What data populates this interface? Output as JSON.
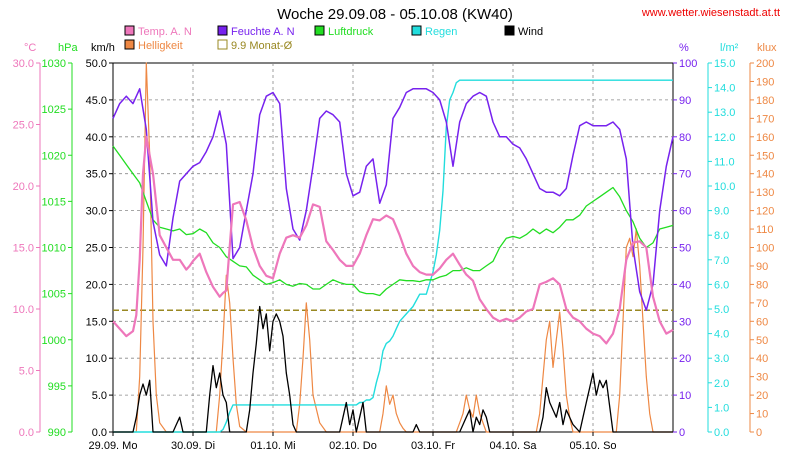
{
  "title": "Woche 29.09.08 - 05.10.08 (KW40)",
  "source": "www.wetter.wiesenstadt.at.tt",
  "units": {
    "temp": "°C",
    "pressure": "hPa",
    "wind": "km/h",
    "humidity": "%",
    "rain": "l/m²",
    "light": "klux"
  },
  "colors": {
    "temp": "#ee77bb",
    "humidity": "#7722ee",
    "pressure": "#22dd22",
    "rain": "#22dddd",
    "wind": "#000000",
    "light": "#ee8844",
    "avg": "#998822",
    "title": "#000000",
    "source": "#ee0000",
    "grid": "#888888"
  },
  "legend": [
    {
      "key": "temp",
      "label": "Temp. A. N"
    },
    {
      "key": "humidity",
      "label": "Feuchte A. N"
    },
    {
      "key": "pressure",
      "label": "Luftdruck"
    },
    {
      "key": "rain",
      "label": "Regen"
    },
    {
      "key": "wind",
      "label": "Wind"
    },
    {
      "key": "light",
      "label": "Helligkeit"
    },
    {
      "key": "avg",
      "label": "9.9 Monat-Ø"
    }
  ],
  "chart_data": {
    "type": "line",
    "x_unit": "hours since 29.09. 00:00",
    "xlim": [
      0,
      168
    ],
    "x_tick_labels": [
      "29.09.  Mo",
      "30.09.  Di",
      "01.10.  Mi",
      "02.10.  Do",
      "03.10.  Fr",
      "04.10.  Sa",
      "05.10.  So"
    ],
    "axes": {
      "temp": {
        "ticks": [
          "0.0",
          "5.0",
          "10.0",
          "15.0",
          "20.0",
          "25.0",
          "30.0"
        ],
        "lim": [
          0,
          30
        ]
      },
      "pressure": {
        "ticks": [
          "990",
          "995",
          "1000",
          "1005",
          "1010",
          "1015",
          "1020",
          "1025",
          "1030"
        ],
        "lim": [
          990,
          1030
        ]
      },
      "wind": {
        "ticks": [
          "0.0",
          "5.0",
          "10.0",
          "15.0",
          "20.0",
          "25.0",
          "30.0",
          "35.0",
          "40.0",
          "45.0",
          "50.0"
        ],
        "lim": [
          0,
          50
        ]
      },
      "humidity": {
        "ticks": [
          "0",
          "10",
          "20",
          "30",
          "40",
          "50",
          "60",
          "70",
          "80",
          "90",
          "100"
        ],
        "lim": [
          0,
          100
        ]
      },
      "rain": {
        "ticks": [
          "0.0",
          "1.0",
          "2.0",
          "3.0",
          "4.0",
          "5.0",
          "6.0",
          "7.0",
          "8.0",
          "9.0",
          "10.0",
          "11.0",
          "12.0",
          "13.0",
          "14.0",
          "15.0"
        ],
        "lim": [
          0,
          15
        ]
      },
      "light": {
        "ticks": [
          "0",
          "10",
          "20",
          "30",
          "40",
          "50",
          "60",
          "70",
          "80",
          "90",
          "100",
          "110",
          "120",
          "130",
          "140",
          "150",
          "160",
          "170",
          "180",
          "190",
          "200"
        ],
        "lim": [
          0,
          200
        ]
      }
    },
    "avg_line": {
      "axis": "temp",
      "value": 9.9
    },
    "series": [
      {
        "name": "Temp. A. N",
        "key": "temp",
        "axis": "temp",
        "x": [
          0,
          2,
          4,
          6,
          7,
          8,
          9,
          10,
          12,
          14,
          16,
          18,
          20,
          22,
          23,
          24,
          26,
          28,
          30,
          32,
          33,
          34,
          36,
          38,
          40,
          42,
          44,
          46,
          48,
          50,
          52,
          54,
          56,
          58,
          60,
          62,
          64,
          66,
          68,
          70,
          72,
          74,
          76,
          78,
          80,
          82,
          84,
          86,
          88,
          90,
          92,
          94,
          96,
          98,
          100,
          102,
          104,
          106,
          108,
          110,
          112,
          114,
          116,
          118,
          120,
          122,
          124,
          126,
          128,
          130,
          132,
          134,
          136,
          138,
          140,
          142,
          144,
          146,
          148,
          150,
          152,
          154,
          156,
          158,
          160,
          162,
          164,
          166,
          168
        ],
        "y": [
          9.0,
          8.4,
          7.8,
          8.2,
          9.5,
          14,
          21,
          24,
          21,
          16,
          15,
          14,
          14,
          13.2,
          13.5,
          13.9,
          14.5,
          13,
          11.8,
          11,
          11.3,
          11.5,
          18.5,
          18.7,
          17.2,
          15,
          13.5,
          12.7,
          12.5,
          14.5,
          15.8,
          16,
          15.8,
          16.8,
          18.5,
          18.3,
          15.5,
          14.8,
          14,
          13.5,
          13.5,
          14.5,
          16,
          17.3,
          17.2,
          17.6,
          17.3,
          16,
          14.5,
          13.5,
          13,
          12.8,
          12.8,
          13.3,
          14,
          14.5,
          13.6,
          12.8,
          12.3,
          10.8,
          10,
          9.3,
          9,
          9.2,
          9,
          9.3,
          9.8,
          10,
          12,
          12.2,
          12.5,
          12,
          10,
          9.3,
          9,
          8.4,
          8,
          7.8,
          7.2,
          8,
          10,
          14,
          15.4,
          15.5,
          15,
          11,
          9,
          8,
          8.3
        ]
      },
      {
        "name": "Feuchte A. N",
        "key": "humidity",
        "axis": "humidity",
        "x": [
          0,
          2,
          4,
          6,
          8,
          10,
          12,
          14,
          16,
          18,
          20,
          22,
          24,
          26,
          28,
          30,
          32,
          34,
          36,
          38,
          40,
          42,
          44,
          46,
          48,
          50,
          52,
          54,
          56,
          58,
          60,
          62,
          64,
          66,
          68,
          70,
          72,
          74,
          76,
          78,
          80,
          82,
          84,
          86,
          88,
          90,
          92,
          94,
          96,
          98,
          100,
          102,
          104,
          106,
          108,
          110,
          112,
          114,
          116,
          118,
          120,
          122,
          124,
          126,
          128,
          130,
          132,
          134,
          136,
          138,
          140,
          142,
          144,
          146,
          148,
          150,
          152,
          154,
          156,
          158,
          160,
          162,
          164,
          166,
          168
        ],
        "y": [
          85,
          89,
          91,
          89,
          93,
          82,
          57,
          48,
          45,
          58,
          68,
          70,
          72,
          73,
          76,
          80,
          87,
          78,
          47,
          50,
          60,
          70,
          86,
          91,
          92,
          89,
          66,
          55,
          52,
          60,
          72,
          85,
          87,
          86,
          84,
          70,
          64,
          65,
          72,
          74,
          62,
          67,
          85,
          88,
          92,
          93,
          93,
          93,
          92,
          90,
          84,
          72,
          84,
          89,
          91,
          92,
          91,
          84,
          80,
          80,
          78,
          77,
          74,
          70,
          66,
          65,
          65,
          64,
          66,
          75,
          83,
          84,
          83,
          83,
          83,
          84,
          82,
          74,
          50,
          38,
          33,
          40,
          60,
          72,
          80
        ]
      },
      {
        "name": "Luftdruck",
        "key": "pressure",
        "axis": "pressure",
        "x": [
          0,
          2,
          4,
          6,
          8,
          10,
          12,
          14,
          16,
          18,
          20,
          22,
          24,
          26,
          28,
          30,
          32,
          34,
          36,
          38,
          40,
          42,
          44,
          46,
          48,
          50,
          52,
          54,
          56,
          58,
          60,
          62,
          64,
          66,
          68,
          70,
          72,
          74,
          76,
          78,
          80,
          82,
          84,
          86,
          88,
          90,
          92,
          94,
          96,
          98,
          100,
          102,
          104,
          106,
          108,
          110,
          112,
          114,
          116,
          118,
          120,
          122,
          124,
          126,
          128,
          130,
          132,
          134,
          136,
          138,
          140,
          142,
          144,
          146,
          148,
          150,
          152,
          154,
          156,
          158,
          160,
          162,
          164,
          166,
          168
        ],
        "y": [
          1021,
          1020,
          1019,
          1018,
          1017,
          1015,
          1013,
          1012.2,
          1012,
          1011.8,
          1012,
          1011.4,
          1011.5,
          1012,
          1011.6,
          1010.5,
          1010,
          1009,
          1008.5,
          1008,
          1007.9,
          1007,
          1006.5,
          1006,
          1006.2,
          1006.5,
          1006,
          1005.8,
          1006.1,
          1006,
          1005.5,
          1005.5,
          1006,
          1006.5,
          1006.2,
          1006,
          1006,
          1005.2,
          1005,
          1005,
          1004.8,
          1005.5,
          1006,
          1006.5,
          1006.4,
          1006.4,
          1006.3,
          1006.5,
          1006.5,
          1006.8,
          1007,
          1007.5,
          1007.5,
          1007.8,
          1007.5,
          1007.5,
          1008,
          1008.5,
          1010,
          1011,
          1011.2,
          1011,
          1011.4,
          1012,
          1011.5,
          1012,
          1011.6,
          1012.2,
          1013,
          1013,
          1013.5,
          1014.5,
          1015,
          1015.5,
          1016,
          1016.5,
          1015.5,
          1014,
          1012.8,
          1011,
          1010,
          1010.5,
          1012,
          1012.2,
          1012.4
        ]
      },
      {
        "name": "Regen",
        "key": "rain",
        "axis": "rain",
        "x": [
          0,
          32,
          33,
          34,
          35,
          36,
          70,
          71,
          72,
          73,
          74,
          75,
          76,
          77,
          78,
          79,
          80,
          81,
          82,
          83,
          84,
          85,
          86,
          88,
          90,
          92,
          94,
          96,
          97,
          98,
          99,
          100,
          101,
          102,
          103,
          104,
          105,
          106,
          108,
          168
        ],
        "y": [
          0,
          0,
          0.1,
          0.4,
          0.8,
          1.1,
          1.1,
          1.1,
          1.1,
          1.1,
          1.2,
          1.2,
          1.3,
          1.3,
          1.4,
          2,
          2.5,
          3.3,
          3.6,
          3.7,
          3.9,
          4.2,
          4.5,
          4.8,
          5.1,
          5.6,
          5.6,
          6.5,
          7.2,
          8.2,
          9.8,
          12.4,
          13.5,
          13.8,
          14.2,
          14.3,
          14.3,
          14.3,
          14.3,
          14.3
        ]
      },
      {
        "name": "Wind",
        "key": "wind",
        "axis": "wind",
        "x": [
          0,
          6,
          7,
          8,
          9,
          10,
          11,
          12,
          18,
          19,
          20,
          21,
          22,
          24,
          28,
          29,
          30,
          31,
          32,
          33,
          34,
          35,
          36,
          40,
          41,
          42,
          43,
          44,
          45,
          46,
          47,
          48,
          49,
          50,
          51,
          52,
          53,
          54,
          55,
          56,
          60,
          62,
          64,
          66,
          68,
          69,
          70,
          71,
          72,
          73,
          74,
          75,
          76,
          88,
          90,
          91,
          92,
          93,
          94,
          95,
          96,
          98,
          100,
          102,
          104,
          105,
          106,
          107,
          108,
          109,
          110,
          111,
          112,
          113,
          114,
          115,
          116,
          117,
          118,
          124,
          126,
          128,
          129,
          130,
          131,
          132,
          133,
          134,
          135,
          136,
          138,
          140,
          141,
          142,
          143,
          144,
          145,
          146,
          147,
          148,
          150,
          152,
          168
        ],
        "y": [
          0,
          0,
          2,
          5,
          6.5,
          5,
          7,
          0,
          0,
          1,
          2,
          0,
          0,
          0,
          0,
          5,
          9,
          6,
          8,
          5,
          4,
          0,
          0,
          0,
          3,
          8,
          12,
          17,
          14,
          16,
          11,
          15,
          16,
          15,
          13,
          8,
          5,
          1,
          0,
          0,
          0,
          0,
          0,
          0,
          0,
          2,
          4,
          1,
          3,
          0,
          2,
          4,
          0,
          0,
          0,
          1,
          0,
          0,
          0,
          0,
          0,
          0,
          0,
          0,
          0,
          1,
          2,
          3,
          0,
          2,
          1,
          3,
          2,
          0,
          0,
          0,
          0,
          0,
          0,
          0,
          0,
          0,
          2,
          6,
          4,
          3,
          2,
          4,
          1,
          3,
          1,
          0,
          2,
          4,
          6,
          8,
          5,
          7,
          6,
          7,
          0,
          0,
          0
        ]
      },
      {
        "name": "Helligkeit",
        "key": "light",
        "axis": "light",
        "x": [
          0,
          7,
          8,
          9,
          10,
          11,
          12,
          13,
          14,
          16,
          17,
          18,
          19,
          31,
          32,
          33,
          34,
          35,
          36,
          37,
          38,
          40,
          55,
          56,
          57,
          58,
          59,
          60,
          62,
          64,
          80,
          81,
          82,
          83,
          84,
          85,
          86,
          87,
          88,
          103,
          104,
          105,
          106,
          107,
          108,
          109,
          110,
          111,
          112,
          127,
          128,
          129,
          130,
          131,
          132,
          133,
          134,
          135,
          136,
          137,
          138,
          151,
          152,
          153,
          154,
          155,
          156,
          157,
          158,
          159,
          160,
          161,
          162,
          168
        ],
        "y": [
          0,
          0,
          30,
          100,
          200,
          150,
          60,
          20,
          5,
          0,
          0,
          0,
          0,
          0,
          20,
          50,
          85,
          70,
          40,
          15,
          3,
          0,
          0,
          15,
          40,
          70,
          50,
          20,
          5,
          0,
          0,
          10,
          25,
          15,
          20,
          10,
          5,
          2,
          0,
          0,
          5,
          10,
          20,
          12,
          8,
          20,
          10,
          5,
          0,
          0,
          10,
          30,
          50,
          60,
          35,
          50,
          65,
          45,
          20,
          8,
          0,
          0,
          20,
          60,
          100,
          105,
          95,
          110,
          90,
          60,
          30,
          10,
          0,
          0
        ]
      }
    ]
  }
}
